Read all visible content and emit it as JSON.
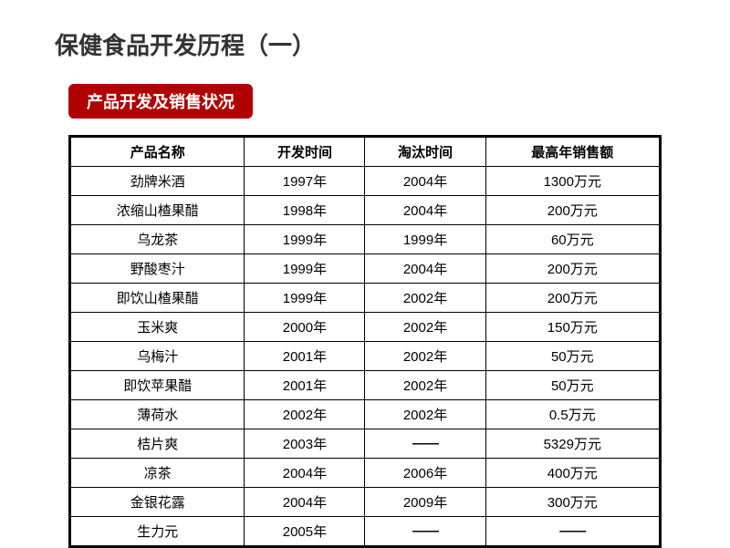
{
  "title": "保健食品开发历程（一）",
  "banner": "产品开发及销售状况",
  "table": {
    "columns": [
      "产品名称",
      "开发时间",
      "淘汰时间",
      "最高年销售额"
    ],
    "rows": [
      [
        "劲牌米酒",
        "1997年",
        "2004年",
        "1300万元"
      ],
      [
        "浓缩山楂果醋",
        "1998年",
        "2004年",
        "200万元"
      ],
      [
        "乌龙茶",
        "1999年",
        "1999年",
        "60万元"
      ],
      [
        "野酸枣汁",
        "1999年",
        "2004年",
        "200万元"
      ],
      [
        "即饮山楂果醋",
        "1999年",
        "2002年",
        "200万元"
      ],
      [
        "玉米爽",
        "2000年",
        "2002年",
        "150万元"
      ],
      [
        "乌梅汁",
        "2001年",
        "2002年",
        "50万元"
      ],
      [
        "即饮苹果醋",
        "2001年",
        "2002年",
        "50万元"
      ],
      [
        "薄荷水",
        "2002年",
        "2002年",
        "0.5万元"
      ],
      [
        "桔片爽",
        "2003年",
        "——",
        "5329万元"
      ],
      [
        "凉茶",
        "2004年",
        "2006年",
        "400万元"
      ],
      [
        "金银花露",
        "2004年",
        "2009年",
        "300万元"
      ],
      [
        "生力元",
        "2005年",
        "——",
        "——"
      ]
    ],
    "border_color": "#000000",
    "outer_border_width": 3,
    "inner_border_width": 1,
    "header_bg": "#ffffff",
    "cell_bg": "#ffffff",
    "font_size": 15
  },
  "colors": {
    "title": "#333333",
    "banner_bg": "#b00000",
    "banner_text": "#ffffff",
    "page_bg": "#ffffff"
  }
}
